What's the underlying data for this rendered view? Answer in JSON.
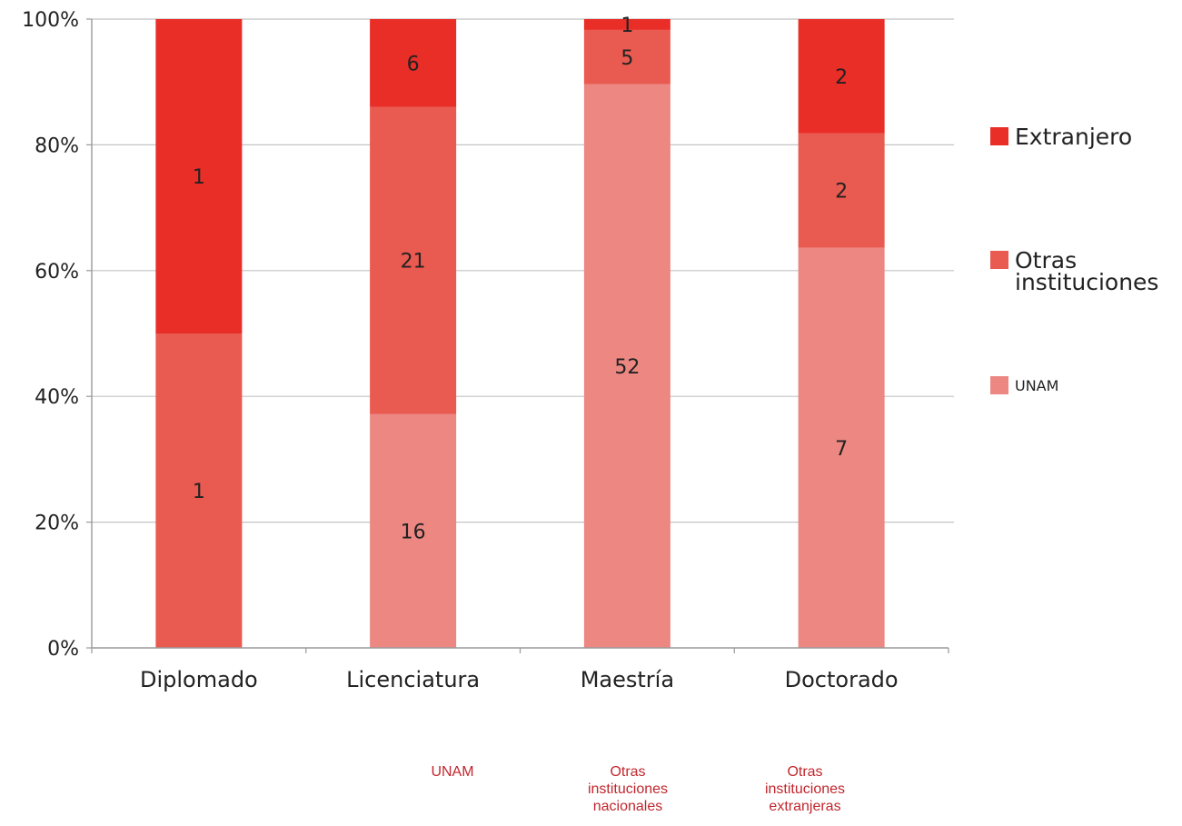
{
  "chart_data": {
    "type": "bar",
    "stacked": "percent",
    "categories": [
      "Diplomado",
      "Licenciatura",
      "Maestría",
      "Doctorado"
    ],
    "series": [
      {
        "name": "UNAM",
        "values": [
          0,
          16,
          52,
          7
        ],
        "color": "#ec8782"
      },
      {
        "name": "Otras instituciones",
        "values": [
          1,
          21,
          5,
          2
        ],
        "color": "#e95a50"
      },
      {
        "name": "Extranjero",
        "values": [
          1,
          6,
          1,
          2
        ],
        "color": "#e92d27"
      }
    ],
    "y_ticks": [
      "0%",
      "20%",
      "40%",
      "60%",
      "80%",
      "100%"
    ],
    "ylim": [
      0,
      100
    ],
    "grid": true,
    "legend_position": "right"
  },
  "footer_labels": [
    "UNAM",
    "Otras\ninstituciones\nnacionales",
    "Otras\ninstituciones\nextranjeras"
  ],
  "footer_color": "#c1272d"
}
